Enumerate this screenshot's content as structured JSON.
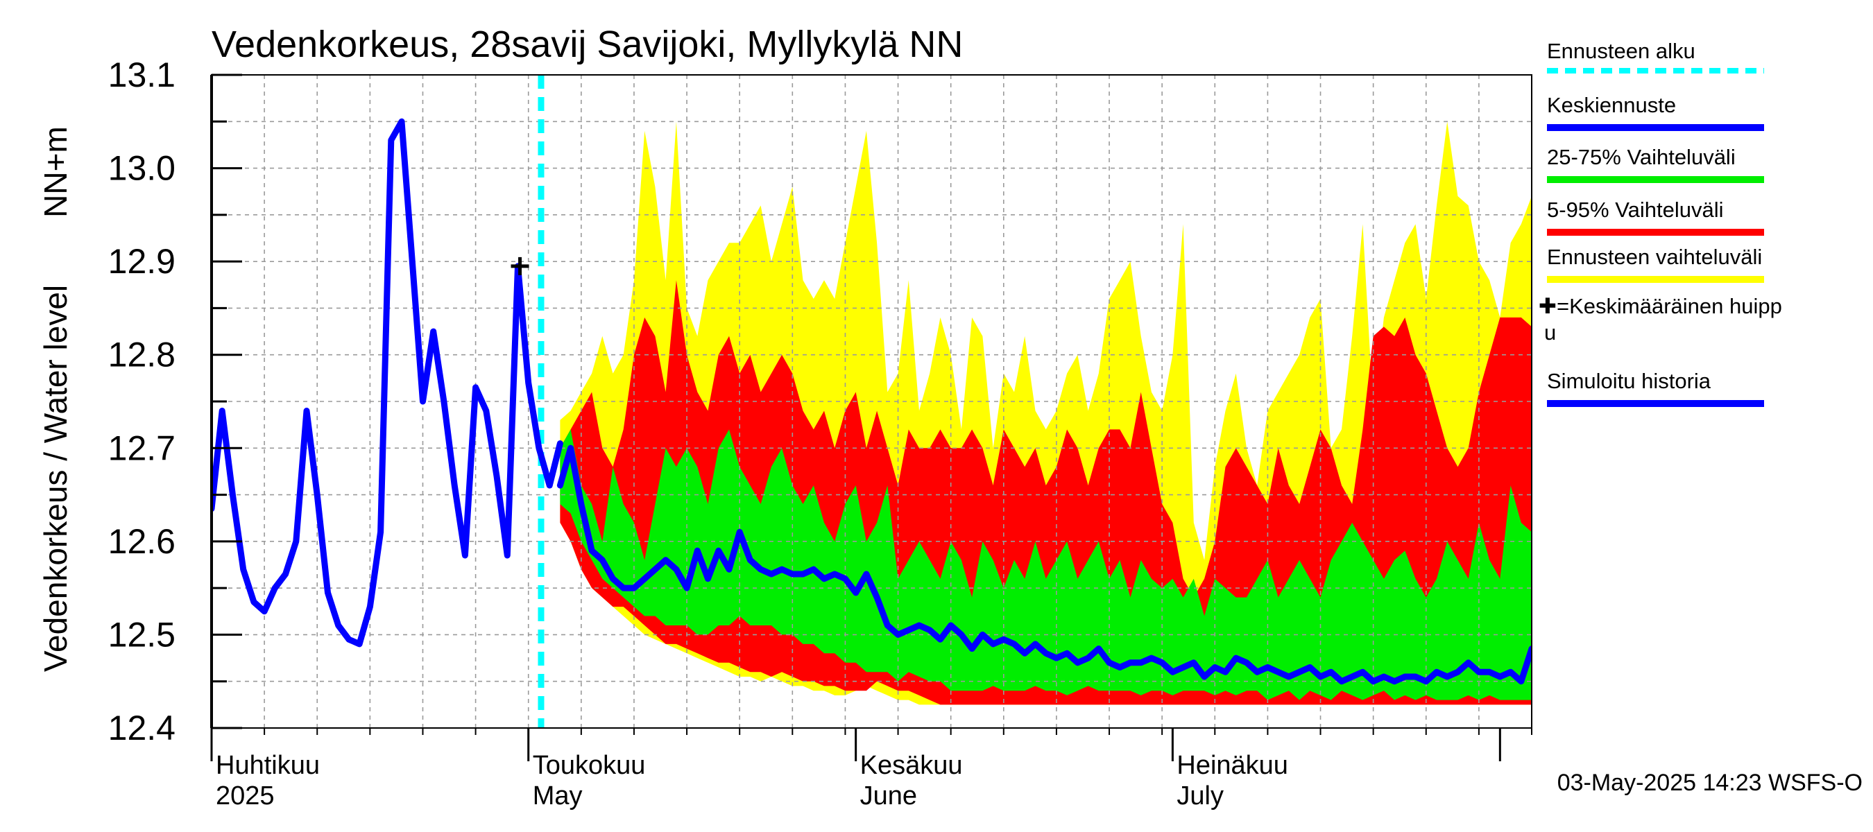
{
  "chart_data": {
    "type": "area",
    "title": "Vedenkorkeus, 28savij Savijoki, Myllykylä NN",
    "ylabel_left": "Vedenkorkeus / Water level",
    "ylabel_right": "NN+m",
    "ylim": [
      12.4,
      13.1
    ],
    "yticks": [
      "12.4",
      "12.5",
      "12.6",
      "12.7",
      "12.8",
      "12.9",
      "13.0",
      "13.1"
    ],
    "x_range_days": [
      0,
      125
    ],
    "month_labels": [
      {
        "day": 0,
        "fi": "Huhtikuu",
        "en": "2025"
      },
      {
        "day": 30,
        "fi": "Toukokuu",
        "en": "May"
      },
      {
        "day": 61,
        "fi": "Kesäkuu",
        "en": "June"
      },
      {
        "day": 91,
        "fi": "Heinäkuu",
        "en": "July"
      }
    ],
    "month_starts": [
      0,
      30,
      61,
      91,
      122
    ],
    "forecast_start_day": 31.2,
    "mean_peak": {
      "day": 29.2,
      "value": 12.895
    },
    "history": {
      "days": [
        0,
        1,
        2,
        3,
        4,
        5,
        6,
        7,
        8,
        9,
        10,
        11,
        12,
        13,
        14,
        15,
        16,
        17,
        18,
        19,
        20,
        21,
        22,
        23,
        24,
        25,
        26,
        27,
        28,
        29,
        30,
        31,
        32,
        33
      ],
      "values": [
        12.635,
        12.74,
        12.65,
        12.57,
        12.535,
        12.525,
        12.55,
        12.565,
        12.6,
        12.74,
        12.65,
        12.545,
        12.51,
        12.495,
        12.49,
        12.53,
        12.61,
        13.03,
        13.05,
        12.9,
        12.75,
        12.825,
        12.75,
        12.66,
        12.585,
        12.765,
        12.74,
        12.67,
        12.585,
        12.895,
        12.77,
        12.7,
        12.66,
        12.705
      ]
    },
    "forecast": {
      "days": [
        33,
        34,
        35,
        36,
        37,
        38,
        39,
        40,
        41,
        42,
        43,
        44,
        45,
        46,
        47,
        48,
        49,
        50,
        51,
        52,
        53,
        54,
        55,
        56,
        57,
        58,
        59,
        60,
        61,
        62,
        63,
        64,
        65,
        66,
        67,
        68,
        69,
        70,
        71,
        72,
        73,
        74,
        75,
        76,
        77,
        78,
        79,
        80,
        81,
        82,
        83,
        84,
        85,
        86,
        87,
        88,
        89,
        90,
        91,
        92,
        93,
        94,
        95,
        96,
        97,
        98,
        99,
        100,
        101,
        102,
        103,
        104,
        105,
        106,
        107,
        108,
        109,
        110,
        111,
        112,
        113,
        114,
        115,
        116,
        117,
        118,
        119,
        120,
        121,
        122,
        123,
        124,
        125
      ],
      "series": [
        {
          "name": "Ennusteen vaihteluväli max",
          "values": [
            12.73,
            12.74,
            12.76,
            12.78,
            12.82,
            12.78,
            12.8,
            12.88,
            13.04,
            12.98,
            12.88,
            13.05,
            12.85,
            12.82,
            12.88,
            12.9,
            12.92,
            12.92,
            12.94,
            12.96,
            12.9,
            12.94,
            12.98,
            12.88,
            12.86,
            12.88,
            12.86,
            12.92,
            12.98,
            13.04,
            12.92,
            12.76,
            12.78,
            12.88,
            12.74,
            12.78,
            12.84,
            12.8,
            12.72,
            12.84,
            12.82,
            12.7,
            12.78,
            12.76,
            12.82,
            12.74,
            12.72,
            12.74,
            12.78,
            12.8,
            12.74,
            12.78,
            12.86,
            12.88,
            12.9,
            12.82,
            12.76,
            12.74,
            12.8,
            12.94,
            12.62,
            12.58,
            12.68,
            12.74,
            12.78,
            12.7,
            12.66,
            12.74,
            12.76,
            12.78,
            12.8,
            12.84,
            12.86,
            12.7,
            12.72,
            12.82,
            12.94,
            12.74,
            12.84,
            12.88,
            12.92,
            12.94,
            12.86,
            12.96,
            13.05,
            12.97,
            12.96,
            12.9,
            12.88,
            12.84,
            12.92,
            12.94,
            12.97
          ]
        },
        {
          "name": "5-95% max",
          "values": [
            12.7,
            12.72,
            12.74,
            12.76,
            12.7,
            12.68,
            12.72,
            12.8,
            12.84,
            12.82,
            12.76,
            12.88,
            12.8,
            12.76,
            12.74,
            12.8,
            12.82,
            12.78,
            12.8,
            12.76,
            12.78,
            12.8,
            12.78,
            12.74,
            12.72,
            12.74,
            12.7,
            12.74,
            12.76,
            12.7,
            12.74,
            12.7,
            12.66,
            12.72,
            12.7,
            12.7,
            12.72,
            12.7,
            12.7,
            12.72,
            12.7,
            12.66,
            12.72,
            12.7,
            12.68,
            12.7,
            12.66,
            12.68,
            12.72,
            12.7,
            12.66,
            12.7,
            12.72,
            12.72,
            12.7,
            12.76,
            12.7,
            12.64,
            12.62,
            12.56,
            12.54,
            12.56,
            12.6,
            12.68,
            12.7,
            12.68,
            12.66,
            12.64,
            12.7,
            12.66,
            12.64,
            12.68,
            12.72,
            12.7,
            12.66,
            12.64,
            12.72,
            12.82,
            12.83,
            12.82,
            12.84,
            12.8,
            12.78,
            12.74,
            12.7,
            12.68,
            12.7,
            12.76,
            12.8,
            12.84,
            12.84,
            12.84,
            12.83
          ]
        },
        {
          "name": "25-75% max",
          "values": [
            12.7,
            12.72,
            12.66,
            12.64,
            12.6,
            12.68,
            12.64,
            12.62,
            12.58,
            12.64,
            12.7,
            12.68,
            12.7,
            12.68,
            12.64,
            12.7,
            12.72,
            12.68,
            12.66,
            12.64,
            12.68,
            12.7,
            12.66,
            12.64,
            12.66,
            12.62,
            12.6,
            12.64,
            12.66,
            12.6,
            12.62,
            12.66,
            12.56,
            12.58,
            12.6,
            12.58,
            12.56,
            12.6,
            12.58,
            12.54,
            12.6,
            12.58,
            12.55,
            12.58,
            12.56,
            12.6,
            12.56,
            12.58,
            12.6,
            12.56,
            12.58,
            12.6,
            12.56,
            12.58,
            12.54,
            12.58,
            12.56,
            12.55,
            12.56,
            12.54,
            12.56,
            12.52,
            12.56,
            12.55,
            12.54,
            12.54,
            12.56,
            12.58,
            12.54,
            12.56,
            12.58,
            12.56,
            12.54,
            12.58,
            12.6,
            12.62,
            12.6,
            12.58,
            12.56,
            12.58,
            12.59,
            12.56,
            12.54,
            12.56,
            12.6,
            12.58,
            12.56,
            12.62,
            12.58,
            12.56,
            12.66,
            12.62,
            12.61
          ]
        },
        {
          "name": "Keskiennuste",
          "values": [
            12.66,
            12.7,
            12.64,
            12.59,
            12.58,
            12.56,
            12.55,
            12.55,
            12.56,
            12.57,
            12.58,
            12.57,
            12.55,
            12.59,
            12.56,
            12.59,
            12.57,
            12.61,
            12.58,
            12.57,
            12.565,
            12.57,
            12.565,
            12.565,
            12.57,
            12.56,
            12.565,
            12.56,
            12.545,
            12.565,
            12.54,
            12.51,
            12.5,
            12.505,
            12.51,
            12.505,
            12.495,
            12.51,
            12.5,
            12.485,
            12.5,
            12.49,
            12.495,
            12.49,
            12.48,
            12.49,
            12.48,
            12.475,
            12.48,
            12.47,
            12.475,
            12.485,
            12.47,
            12.465,
            12.47,
            12.47,
            12.475,
            12.47,
            12.46,
            12.465,
            12.47,
            12.455,
            12.465,
            12.46,
            12.475,
            12.47,
            12.46,
            12.465,
            12.46,
            12.455,
            12.46,
            12.465,
            12.455,
            12.46,
            12.45,
            12.455,
            12.46,
            12.45,
            12.455,
            12.45,
            12.455,
            12.455,
            12.45,
            12.46,
            12.455,
            12.46,
            12.47,
            12.46,
            12.46,
            12.455,
            12.46,
            12.45,
            12.485
          ]
        },
        {
          "name": "25-75% min",
          "values": [
            12.64,
            12.63,
            12.6,
            12.58,
            12.56,
            12.55,
            12.54,
            12.53,
            12.52,
            12.52,
            12.51,
            12.51,
            12.51,
            12.5,
            12.5,
            12.51,
            12.51,
            12.52,
            12.51,
            12.51,
            12.51,
            12.5,
            12.5,
            12.49,
            12.49,
            12.48,
            12.48,
            12.47,
            12.47,
            12.46,
            12.46,
            12.46,
            12.45,
            12.46,
            12.455,
            12.45,
            12.45,
            12.44,
            12.44,
            12.44,
            12.44,
            12.445,
            12.44,
            12.44,
            12.44,
            12.445,
            12.44,
            12.44,
            12.435,
            12.44,
            12.445,
            12.44,
            12.44,
            12.44,
            12.44,
            12.435,
            12.44,
            12.44,
            12.435,
            12.44,
            12.44,
            12.44,
            12.435,
            12.44,
            12.435,
            12.44,
            12.44,
            12.43,
            12.435,
            12.44,
            12.43,
            12.44,
            12.435,
            12.43,
            12.44,
            12.435,
            12.43,
            12.435,
            12.44,
            12.43,
            12.435,
            12.43,
            12.435,
            12.43,
            12.43,
            12.43,
            12.435,
            12.43,
            12.435,
            12.43,
            12.43,
            12.43,
            12.43
          ]
        },
        {
          "name": "5-95% min",
          "values": [
            12.62,
            12.6,
            12.57,
            12.55,
            12.54,
            12.53,
            12.53,
            12.52,
            12.51,
            12.5,
            12.49,
            12.49,
            12.485,
            12.48,
            12.475,
            12.47,
            12.47,
            12.465,
            12.46,
            12.46,
            12.455,
            12.46,
            12.455,
            12.45,
            12.45,
            12.445,
            12.445,
            12.44,
            12.44,
            12.44,
            12.45,
            12.445,
            12.44,
            12.44,
            12.435,
            12.43,
            12.425,
            12.425,
            12.425,
            12.425,
            12.425,
            12.425,
            12.425,
            12.425,
            12.425,
            12.425,
            12.425,
            12.425,
            12.425,
            12.425,
            12.425,
            12.425,
            12.425,
            12.425,
            12.425,
            12.425,
            12.425,
            12.425,
            12.425,
            12.425,
            12.425,
            12.425,
            12.425,
            12.425,
            12.425,
            12.425,
            12.425,
            12.425,
            12.425,
            12.425,
            12.425,
            12.425,
            12.425,
            12.425,
            12.425,
            12.425,
            12.425,
            12.425,
            12.425,
            12.425,
            12.425,
            12.425,
            12.425,
            12.425,
            12.425,
            12.425,
            12.425,
            12.425,
            12.425,
            12.425,
            12.425,
            12.425,
            12.425
          ]
        },
        {
          "name": "Ennusteen vaihteluväli min",
          "values": [
            12.62,
            12.6,
            12.57,
            12.55,
            12.54,
            12.53,
            12.52,
            12.51,
            12.5,
            12.495,
            12.49,
            12.485,
            12.48,
            12.475,
            12.47,
            12.465,
            12.46,
            12.455,
            12.455,
            12.45,
            12.455,
            12.45,
            12.445,
            12.445,
            12.44,
            12.44,
            12.435,
            12.435,
            12.44,
            12.445,
            12.44,
            12.435,
            12.43,
            12.43,
            12.425,
            12.425,
            12.425,
            12.425,
            12.425,
            12.425,
            12.425,
            12.425,
            12.425,
            12.425,
            12.425,
            12.425,
            12.425,
            12.425,
            12.425,
            12.425,
            12.425,
            12.425,
            12.425,
            12.425,
            12.425,
            12.425,
            12.425,
            12.425,
            12.425,
            12.425,
            12.425,
            12.425,
            12.425,
            12.425,
            12.425,
            12.425,
            12.425,
            12.425,
            12.425,
            12.425,
            12.425,
            12.425,
            12.425,
            12.425,
            12.425,
            12.425,
            12.425,
            12.425,
            12.425,
            12.425,
            12.425,
            12.425,
            12.425,
            12.425,
            12.425,
            12.425,
            12.425,
            12.425,
            12.425,
            12.425,
            12.425,
            12.425,
            12.425
          ]
        }
      ]
    },
    "legend": [
      {
        "label": "Ennusteen alku",
        "color": "#00ffff",
        "style": "dashed"
      },
      {
        "label": "Keskiennuste",
        "color": "#0000ff",
        "style": "solid"
      },
      {
        "label": "25-75% Vaihteluväli",
        "color": "#00ee00",
        "style": "solid"
      },
      {
        "label": "5-95% Vaihteluväli",
        "color": "#ff0000",
        "style": "solid"
      },
      {
        "label": "Ennusteen vaihteluväli",
        "color": "#ffff00",
        "style": "solid"
      },
      {
        "label": "✚=Keskimääräinen huipp",
        "label2": "u",
        "color": "#000000",
        "style": "none"
      },
      {
        "label": "Simuloitu historia",
        "color": "#0000ff",
        "style": "solid"
      }
    ],
    "colors": {
      "yellow": "#ffff00",
      "red": "#ff0000",
      "green": "#00ee00",
      "blue": "#0000ff",
      "cyan": "#00ffff"
    },
    "footer": "03-May-2025 14:23 WSFS-O"
  }
}
